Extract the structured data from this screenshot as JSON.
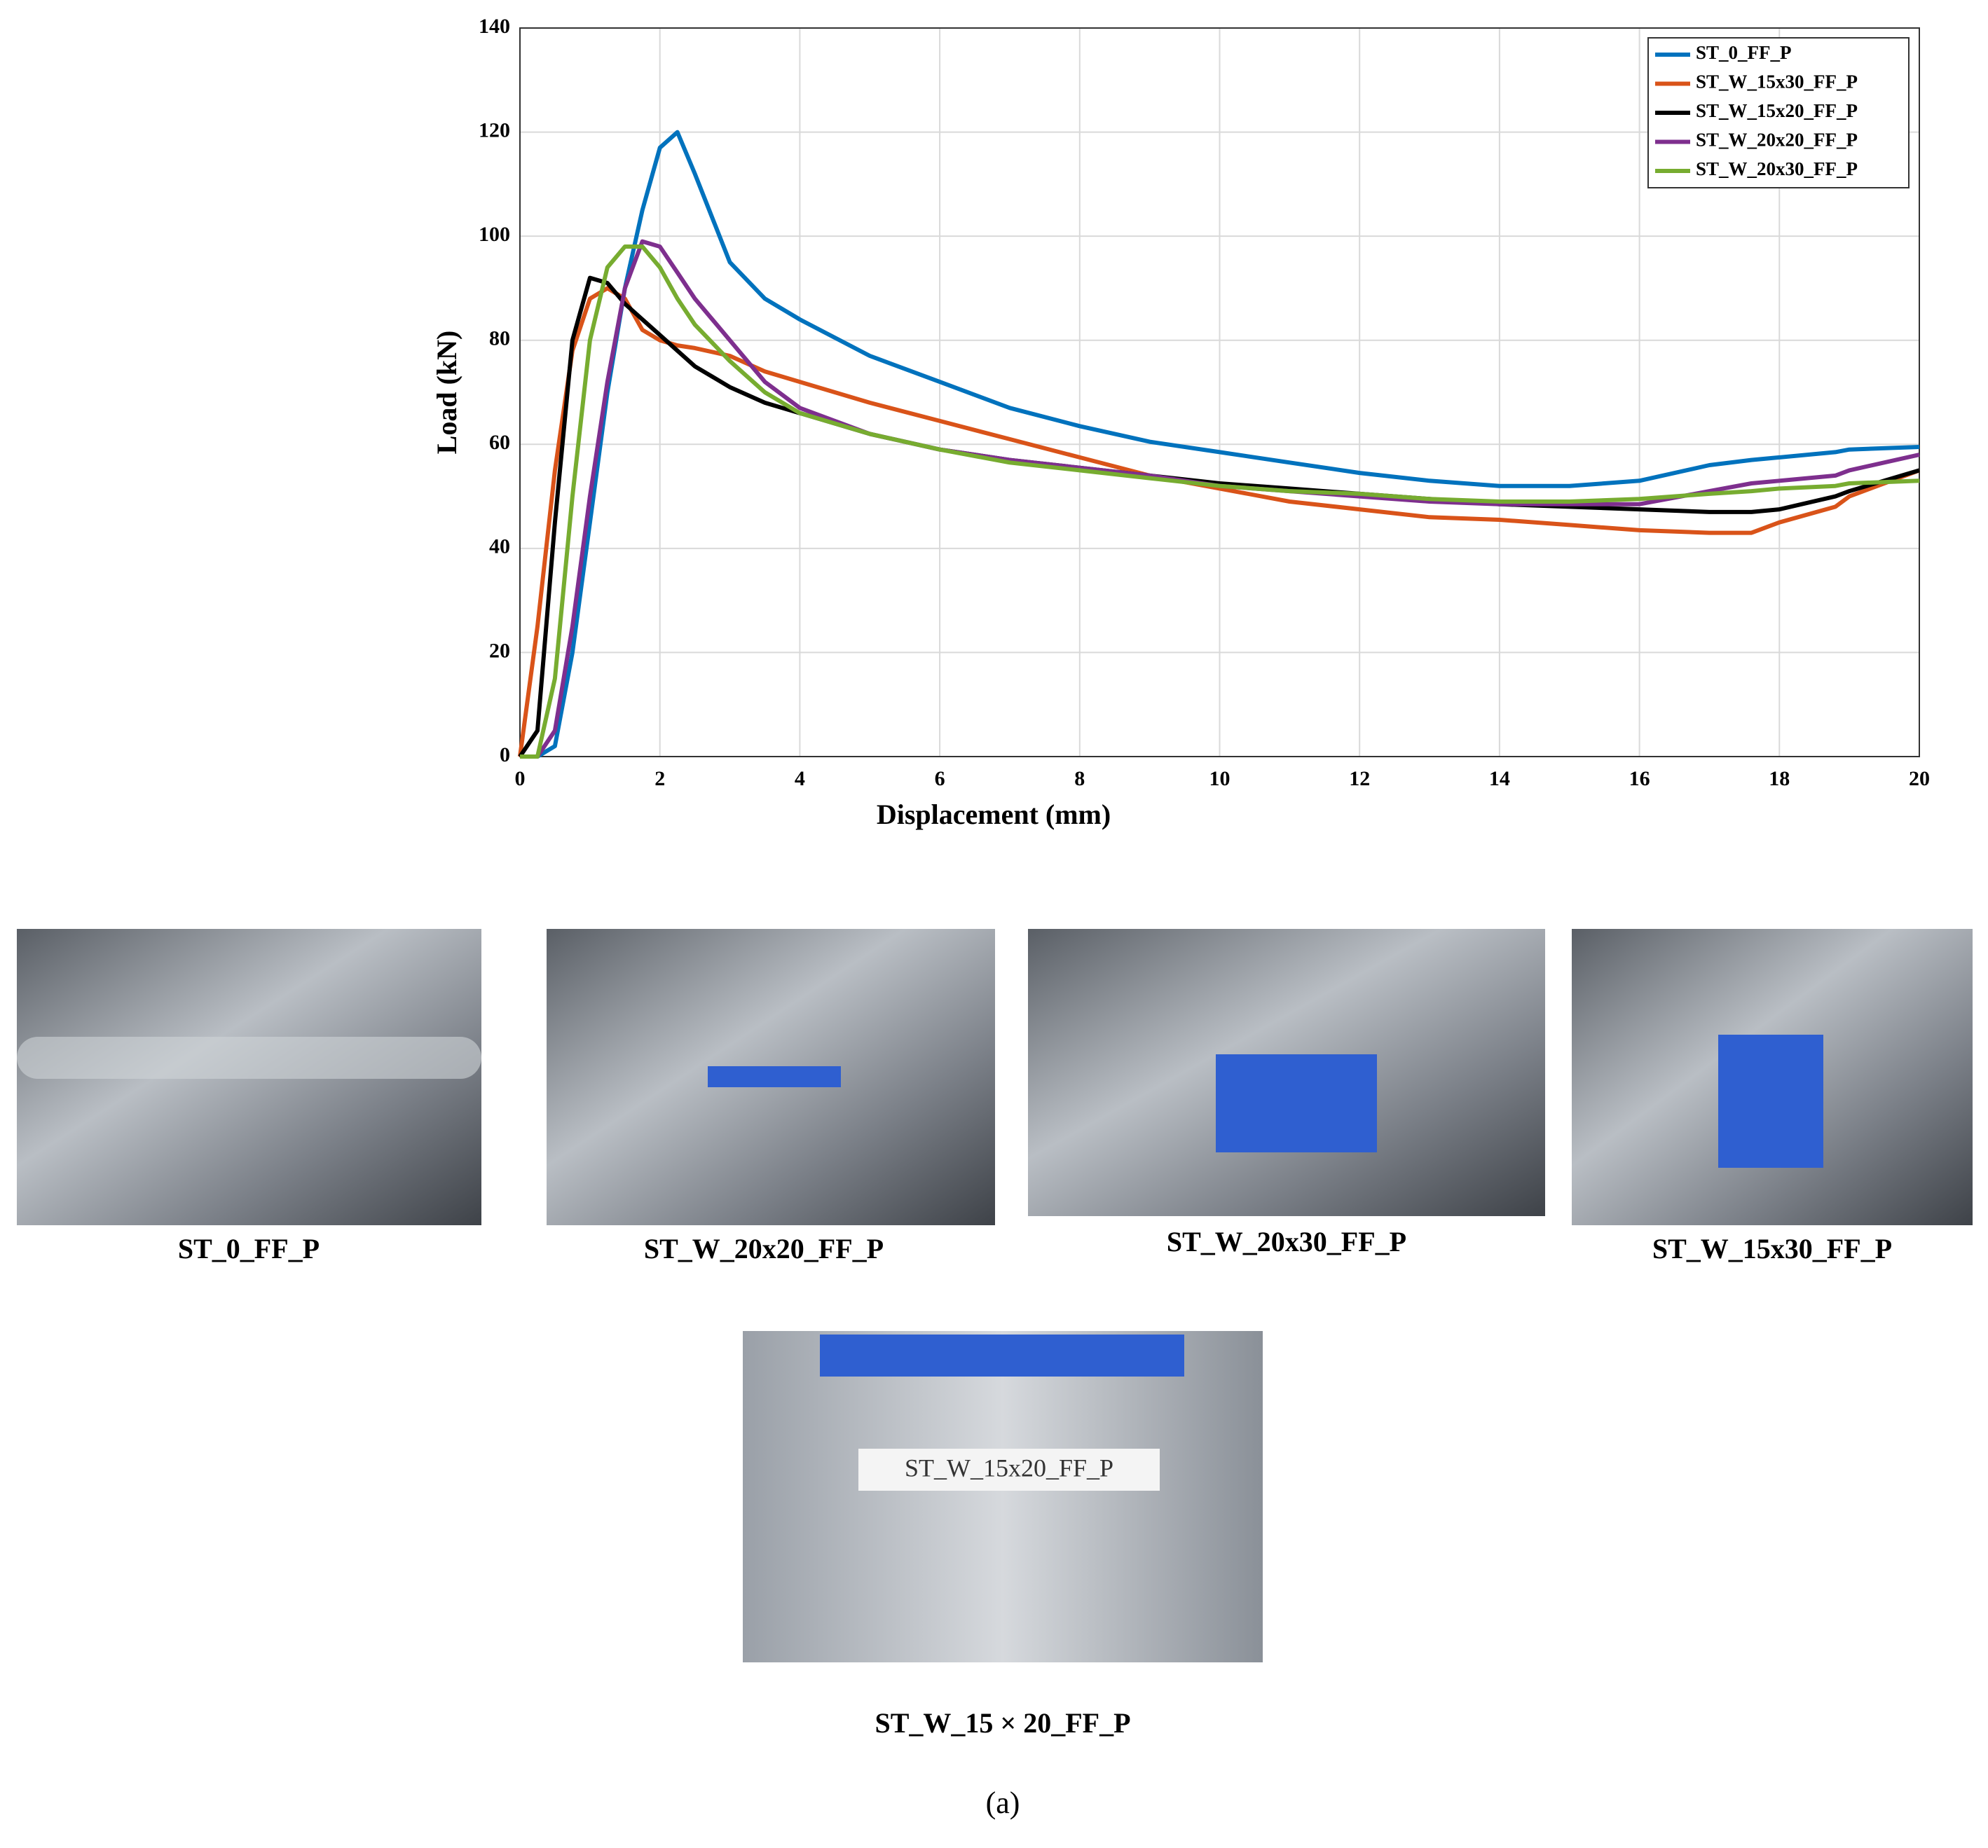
{
  "chart_data": {
    "type": "line",
    "xlabel": "Displacement (mm)",
    "ylabel": "Load (kN)",
    "x": [
      0,
      0.25,
      0.5,
      0.75,
      1,
      1.25,
      1.5,
      1.75,
      2,
      2.25,
      2.5,
      3,
      3.5,
      4,
      5,
      6,
      7,
      8,
      9,
      10,
      11,
      12,
      13,
      14,
      15,
      16,
      17,
      17.6,
      18,
      18.8,
      19,
      20
    ],
    "series": [
      {
        "name": "ST_0_FF_P",
        "color": "#0072bd",
        "values": [
          0,
          0,
          2,
          20,
          45,
          70,
          90,
          105,
          117,
          120,
          112,
          95,
          88,
          84,
          77,
          72,
          67,
          63.5,
          60.5,
          58.5,
          56.5,
          54.5,
          53,
          52,
          52,
          53,
          56,
          57,
          57.5,
          58.5,
          59,
          59.5
        ]
      },
      {
        "name": "ST_W_15x30_FF_P",
        "color": "#d95319",
        "values": [
          0,
          25,
          55,
          78,
          88,
          90,
          88,
          82,
          80,
          79,
          78.5,
          77,
          74,
          72,
          68,
          64.5,
          61,
          57.5,
          54,
          51.5,
          49,
          47.5,
          46,
          45.5,
          44.5,
          43.5,
          43,
          43,
          45,
          48,
          50,
          55
        ]
      },
      {
        "name": "ST_W_15x20_FF_P",
        "color": "#000000",
        "values": [
          0,
          5,
          45,
          80,
          92,
          91,
          87,
          84,
          81,
          78,
          75,
          71,
          68,
          66,
          62,
          59,
          57,
          55.5,
          54,
          52.5,
          51.5,
          50.5,
          49.5,
          48.5,
          48,
          47.5,
          47,
          47,
          47.5,
          50,
          51,
          55
        ]
      },
      {
        "name": "ST_W_20x20_FF_P",
        "color": "#7e2f8e",
        "values": [
          0,
          0,
          5,
          25,
          50,
          72,
          90,
          99,
          98,
          93,
          88,
          80,
          72,
          67,
          62,
          59,
          57,
          55.5,
          54,
          52,
          51,
          50,
          49,
          48.5,
          48.5,
          48.5,
          51,
          52.5,
          53,
          54,
          55,
          58
        ]
      },
      {
        "name": "ST_W_20x30_FF_P",
        "color": "#77ac30",
        "values": [
          0,
          0,
          15,
          50,
          80,
          94,
          98,
          98,
          94,
          88,
          83,
          76,
          70,
          66,
          62,
          59,
          56.5,
          55,
          53.5,
          52,
          51,
          50.5,
          49.5,
          49,
          49,
          49.5,
          50.5,
          51,
          51.5,
          52,
          52.5,
          53
        ]
      }
    ],
    "xlim": [
      0,
      20
    ],
    "xticks": [
      0,
      2,
      4,
      6,
      8,
      10,
      12,
      14,
      16,
      18,
      20
    ],
    "ylim": [
      0,
      140
    ],
    "yticks": [
      0,
      20,
      40,
      60,
      80,
      100,
      120,
      140
    ],
    "grid": true,
    "legend": "upper right"
  },
  "figure": {
    "captions": [
      "ST_0_FF_P",
      "ST_W_20x20_FF_P",
      "ST_W_20x30_FF_P",
      "ST_W_15x30_FF_P",
      "ST_W_15 × 20_FF_P"
    ],
    "photo_label": "ST_W_15x20_FF_P",
    "panel_label": "(a)"
  }
}
